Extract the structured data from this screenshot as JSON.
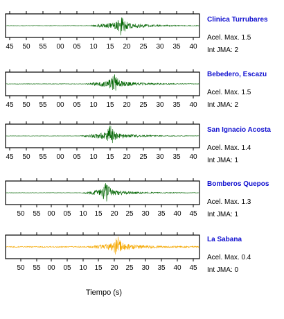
{
  "chart_data": [
    {
      "type": "line",
      "station": "Clinica Turrubares",
      "acel_label": "Acel. Max. 1.5",
      "jma_label": "Int JMA: 2",
      "color": "#006400",
      "tick_labels": [
        "45",
        "50",
        "55",
        "00",
        "05",
        "10",
        "15",
        "20",
        "25",
        "30",
        "35",
        "40"
      ],
      "signal": {
        "onset": 0.43,
        "peak": 0.6,
        "peak_amp": 0.95,
        "noise": 0.02
      }
    },
    {
      "type": "line",
      "station": "Bebedero, Escazu",
      "acel_label": "Acel. Max. 1.5",
      "jma_label": "Int JMA: 2",
      "color": "#006400",
      "tick_labels": [
        "45",
        "50",
        "55",
        "00",
        "05",
        "10",
        "15",
        "20",
        "25",
        "30",
        "35",
        "40"
      ],
      "signal": {
        "onset": 0.4,
        "peak": 0.56,
        "peak_amp": 0.95,
        "noise": 0.02
      }
    },
    {
      "type": "line",
      "station": "San Ignacio Acosta",
      "acel_label": "Acel. Max. 1.4",
      "jma_label": "Int JMA: 1",
      "color": "#006400",
      "tick_labels": [
        "45",
        "50",
        "55",
        "00",
        "05",
        "10",
        "15",
        "20",
        "25",
        "30",
        "35",
        "40"
      ],
      "signal": {
        "onset": 0.38,
        "peak": 0.54,
        "peak_amp": 0.95,
        "noise": 0.015
      }
    },
    {
      "type": "line",
      "station": "Bomberos Quepos",
      "acel_label": "Acel. Max. 1.3",
      "jma_label": "Int JMA: 1",
      "color": "#006400",
      "tick_labels": [
        "50",
        "55",
        "00",
        "05",
        "10",
        "15",
        "20",
        "25",
        "30",
        "35",
        "40",
        "45"
      ],
      "signal": {
        "onset": 0.39,
        "peak": 0.52,
        "peak_amp": 0.95,
        "noise": 0.015
      }
    },
    {
      "type": "line",
      "station": "La Sabana",
      "acel_label": "Acel. Max. 0.4",
      "jma_label": "Int JMA: 0",
      "color": "#f5a800",
      "tick_labels": [
        "50",
        "55",
        "00",
        "05",
        "10",
        "15",
        "20",
        "25",
        "30",
        "35",
        "40",
        "45"
      ],
      "signal": {
        "onset": 0.42,
        "peak": 0.58,
        "peak_amp": 0.95,
        "noise": 0.05
      }
    }
  ],
  "xlabel": "Tiempo (s)"
}
